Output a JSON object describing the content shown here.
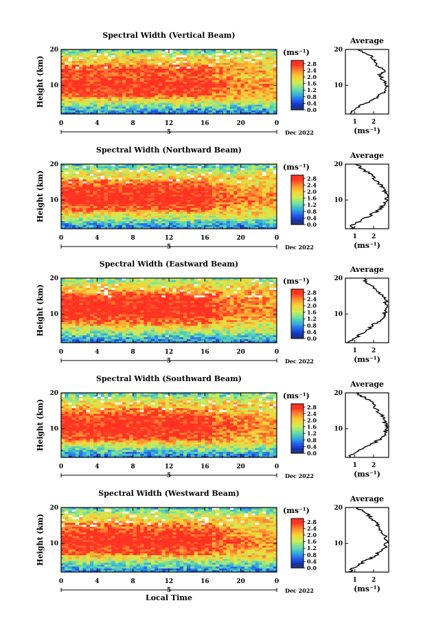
{
  "figure": {
    "xlabel": "Local Time",
    "date_label": "Dec 2022",
    "day_marker": "5",
    "unit_label": "(ms⁻¹)",
    "avg_title": "Average",
    "colorbar_ticks": [
      "2.8",
      "2.4",
      "2.0",
      "1.6",
      "1.2",
      "0.8",
      "0.4",
      "0.0"
    ],
    "colorbar_colors": [
      "#ff3322",
      "#ff8833",
      "#ffcc33",
      "#ccee55",
      "#66ddaa",
      "#33aadd",
      "#2255ee",
      "#1133aa",
      "#333366"
    ]
  },
  "chart_data": [
    {
      "type": "heatmap",
      "title": "Spectral Width (Vertical Beam)",
      "ylabel": "Height (km)",
      "xlabel": "",
      "x_ticks": [
        "0",
        "4",
        "8",
        "12",
        "16",
        "20",
        "0"
      ],
      "y_ticks": [
        "20",
        "10"
      ],
      "xlim": [
        0,
        24
      ],
      "ylim": [
        2,
        20
      ],
      "clim": [
        0.0,
        3.0
      ],
      "profile": {
        "title": "Average",
        "xlim": [
          0.5,
          2.8
        ],
        "x_ticks": [
          "1",
          "2"
        ],
        "height_km": [
          2,
          3,
          4,
          5,
          6,
          7,
          8,
          9,
          10,
          11,
          12,
          13,
          14,
          15,
          16,
          17,
          18,
          19,
          20
        ],
        "width_ms": [
          0.7,
          0.9,
          1.2,
          1.6,
          2.0,
          2.3,
          2.5,
          2.6,
          2.7,
          2.6,
          2.4,
          2.3,
          2.6,
          2.3,
          2.1,
          2.0,
          1.9,
          1.5,
          1.1
        ]
      }
    },
    {
      "type": "heatmap",
      "title": "Spectral Width (Northward Beam)",
      "ylabel": "Height (km)",
      "xlabel": "",
      "x_ticks": [
        "0",
        "4",
        "8",
        "12",
        "16",
        "20",
        "0"
      ],
      "y_ticks": [
        "20",
        "10"
      ],
      "xlim": [
        0,
        24
      ],
      "ylim": [
        2,
        20
      ],
      "clim": [
        0.0,
        3.0
      ],
      "profile": {
        "title": "Average",
        "xlim": [
          0.5,
          2.8
        ],
        "x_ticks": [
          "1",
          "2"
        ],
        "height_km": [
          2,
          3,
          4,
          5,
          6,
          7,
          8,
          9,
          10,
          11,
          12,
          13,
          14,
          15,
          16,
          17,
          18,
          19,
          20
        ],
        "width_ms": [
          0.8,
          0.9,
          1.2,
          1.6,
          1.9,
          2.2,
          2.4,
          2.6,
          2.7,
          2.7,
          2.6,
          2.6,
          2.4,
          2.2,
          2.0,
          1.9,
          1.6,
          1.3,
          1.1
        ]
      }
    },
    {
      "type": "heatmap",
      "title": "Spectral Width (Eastward Beam)",
      "ylabel": "Height (km)",
      "xlabel": "",
      "x_ticks": [
        "0",
        "4",
        "8",
        "12",
        "16",
        "20",
        "0"
      ],
      "y_ticks": [
        "20",
        "10"
      ],
      "xlim": [
        0,
        24
      ],
      "ylim": [
        2,
        20
      ],
      "clim": [
        0.0,
        3.0
      ],
      "profile": {
        "title": "Average",
        "xlim": [
          0.5,
          2.8
        ],
        "x_ticks": [
          "1",
          "2"
        ],
        "height_km": [
          2,
          3,
          4,
          5,
          6,
          7,
          8,
          9,
          10,
          11,
          12,
          13,
          14,
          15,
          16,
          17,
          18,
          19,
          20
        ],
        "width_ms": [
          0.7,
          0.9,
          1.2,
          1.5,
          1.8,
          2.0,
          2.3,
          2.5,
          2.6,
          2.7,
          2.7,
          2.6,
          2.7,
          2.5,
          2.3,
          2.1,
          1.9,
          1.6,
          1.4
        ]
      }
    },
    {
      "type": "heatmap",
      "title": "Spectral Width (Southward Beam)",
      "ylabel": "Height (km)",
      "xlabel": "",
      "x_ticks": [
        "0",
        "4",
        "8",
        "12",
        "16",
        "20",
        "0"
      ],
      "y_ticks": [
        "20",
        "10"
      ],
      "xlim": [
        0,
        24
      ],
      "ylim": [
        2,
        20
      ],
      "clim": [
        0.0,
        3.0
      ],
      "profile": {
        "title": "Average",
        "xlim": [
          0.5,
          2.8
        ],
        "x_ticks": [
          "1",
          "2"
        ],
        "height_km": [
          2,
          3,
          4,
          5,
          6,
          7,
          8,
          9,
          10,
          11,
          12,
          13,
          14,
          15,
          16,
          17,
          18,
          19,
          20
        ],
        "width_ms": [
          0.7,
          0.9,
          1.2,
          1.6,
          2.0,
          2.3,
          2.5,
          2.6,
          2.7,
          2.7,
          2.6,
          2.5,
          2.4,
          2.2,
          2.1,
          2.0,
          1.8,
          1.4,
          1.1
        ]
      }
    },
    {
      "type": "heatmap",
      "title": "Spectral Width (Westward Beam)",
      "ylabel": "Height (km)",
      "xlabel": "Local Time",
      "x_ticks": [
        "0",
        "4",
        "8",
        "12",
        "16",
        "20",
        "0"
      ],
      "y_ticks": [
        "20",
        "10"
      ],
      "xlim": [
        0,
        24
      ],
      "ylim": [
        2,
        20
      ],
      "clim": [
        0.0,
        3.0
      ],
      "profile": {
        "title": "Average",
        "xlim": [
          0.5,
          2.8
        ],
        "x_ticks": [
          "1",
          "2"
        ],
        "height_km": [
          2,
          3,
          4,
          5,
          6,
          7,
          8,
          9,
          10,
          11,
          12,
          13,
          14,
          15,
          16,
          17,
          18,
          19,
          20
        ],
        "width_ms": [
          0.7,
          0.9,
          1.2,
          1.5,
          1.9,
          2.2,
          2.4,
          2.6,
          2.7,
          2.7,
          2.6,
          2.5,
          2.3,
          2.2,
          2.1,
          1.9,
          1.7,
          1.4,
          1.1
        ]
      }
    }
  ]
}
